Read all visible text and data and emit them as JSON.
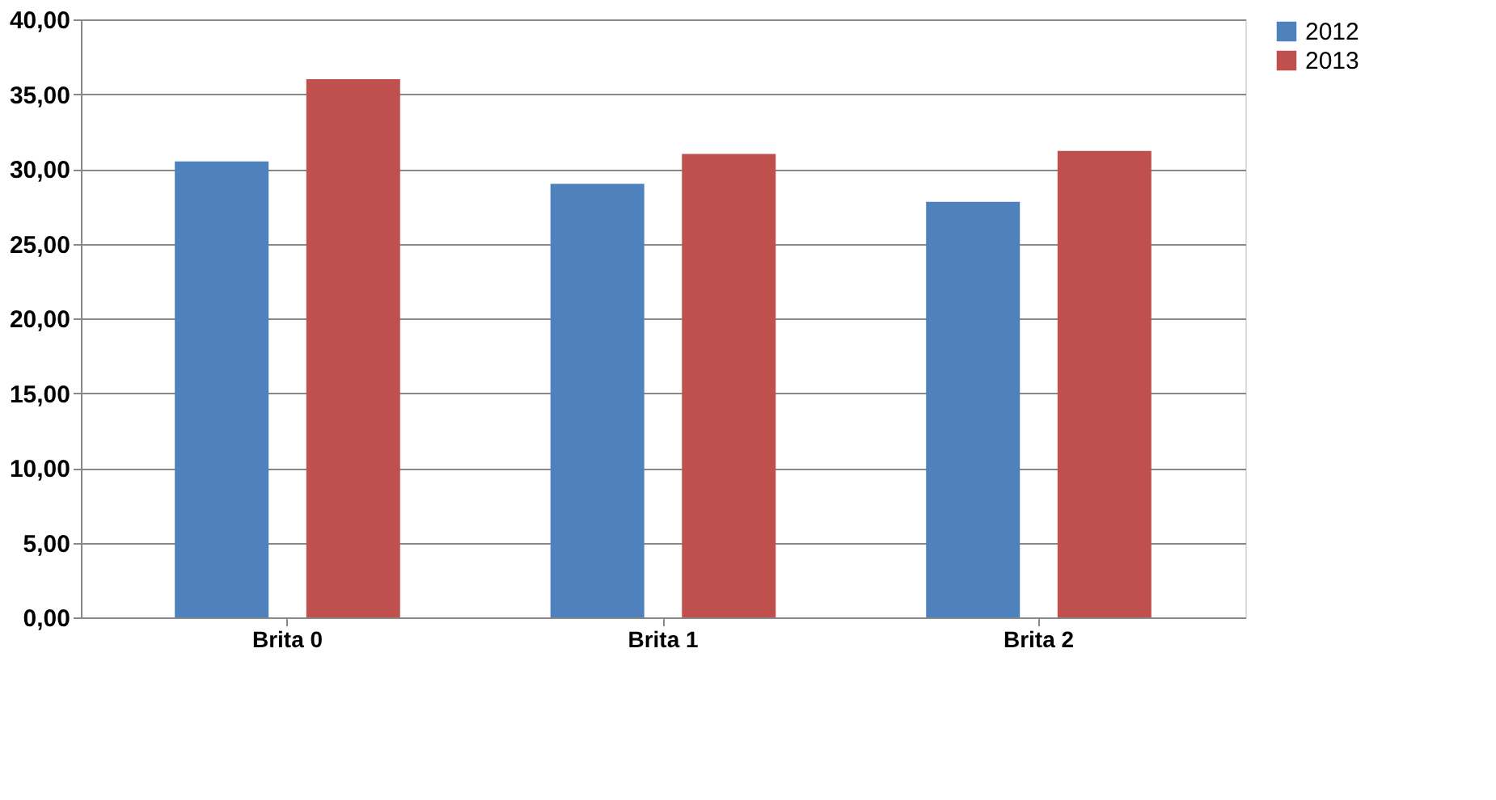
{
  "chart_data": {
    "type": "bar",
    "categories": [
      "Brita 0",
      "Brita 1",
      "Brita 2"
    ],
    "series": [
      {
        "name": "2012",
        "color": "#4f81bd",
        "values": [
          30.5,
          29.0,
          27.8
        ]
      },
      {
        "name": "2013",
        "color": "#c0504d",
        "values": [
          36.0,
          31.0,
          31.2
        ]
      }
    ],
    "ylim": [
      0,
      40
    ],
    "yticks": [
      {
        "value": 0,
        "label": "0,00"
      },
      {
        "value": 5,
        "label": "5,00"
      },
      {
        "value": 10,
        "label": "10,00"
      },
      {
        "value": 15,
        "label": "15,00"
      },
      {
        "value": 20,
        "label": "20,00"
      },
      {
        "value": 25,
        "label": "25,00"
      },
      {
        "value": 30,
        "label": "30,00"
      },
      {
        "value": 35,
        "label": "35,00"
      },
      {
        "value": 40,
        "label": "40,00"
      }
    ],
    "grid": "y",
    "legend": "right"
  }
}
